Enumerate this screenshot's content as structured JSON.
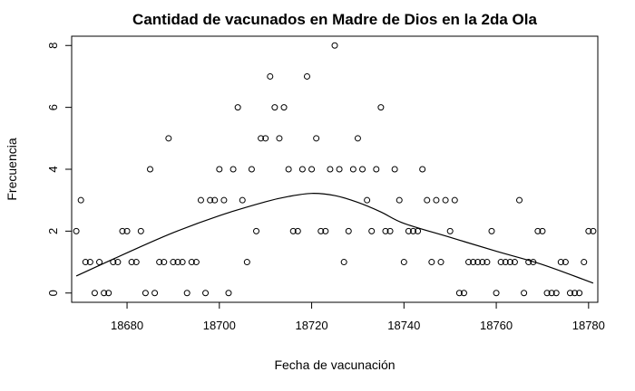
{
  "chart_data": {
    "type": "scatter",
    "title": "Cantidad de vacunados en Madre de Dios en la 2da Ola",
    "xlabel": "Fecha de vacunación",
    "ylabel": "Frecuencia",
    "xlim": [
      18668,
      18782
    ],
    "ylim": [
      -0.3,
      8.3
    ],
    "xticks": [
      18680,
      18700,
      18720,
      18740,
      18760,
      18780
    ],
    "yticks": [
      0,
      2,
      4,
      6,
      8
    ],
    "grid": false,
    "legend": "none",
    "x": [
      18669,
      18670,
      18671,
      18672,
      18673,
      18674,
      18675,
      18676,
      18677,
      18678,
      18679,
      18680,
      18681,
      18682,
      18683,
      18684,
      18685,
      18686,
      18687,
      18688,
      18689,
      18690,
      18691,
      18692,
      18693,
      18694,
      18695,
      18696,
      18697,
      18698,
      18699,
      18700,
      18701,
      18702,
      18703,
      18704,
      18705,
      18706,
      18707,
      18708,
      18709,
      18710,
      18711,
      18712,
      18713,
      18714,
      18715,
      18716,
      18717,
      18718,
      18719,
      18720,
      18721,
      18722,
      18723,
      18724,
      18725,
      18726,
      18727,
      18728,
      18729,
      18730,
      18731,
      18732,
      18733,
      18734,
      18735,
      18736,
      18737,
      18738,
      18739,
      18740,
      18741,
      18742,
      18743,
      18744,
      18745,
      18746,
      18747,
      18748,
      18749,
      18750,
      18751,
      18752,
      18753,
      18754,
      18755,
      18756,
      18757,
      18758,
      18759,
      18760,
      18761,
      18762,
      18763,
      18764,
      18765,
      18766,
      18767,
      18768,
      18769,
      18770,
      18771,
      18772,
      18773,
      18774,
      18775,
      18776,
      18777,
      18778,
      18779,
      18780,
      18781
    ],
    "y": [
      2,
      3,
      1,
      1,
      0,
      1,
      0,
      0,
      1,
      1,
      2,
      2,
      1,
      1,
      2,
      0,
      4,
      0,
      1,
      1,
      5,
      1,
      1,
      1,
      0,
      1,
      1,
      3,
      0,
      3,
      3,
      4,
      3,
      0,
      4,
      6,
      3,
      1,
      4,
      2,
      5,
      5,
      7,
      6,
      5,
      6,
      4,
      2,
      2,
      4,
      7,
      4,
      5,
      2,
      2,
      4,
      8,
      4,
      1,
      2,
      4,
      5,
      4,
      3,
      2,
      4,
      6,
      2,
      2,
      4,
      3,
      1,
      2,
      2,
      2,
      4,
      3,
      1,
      3,
      1,
      3,
      2,
      3,
      0,
      0,
      1,
      1,
      1,
      1,
      1,
      2,
      0,
      1,
      1,
      1,
      1,
      3,
      0,
      1,
      1,
      2,
      2,
      0,
      0,
      0,
      1,
      1,
      0,
      0,
      0,
      1,
      2,
      2
    ],
    "curve": {
      "x": [
        18669,
        18680,
        18690,
        18700,
        18710,
        18715,
        18720,
        18725,
        18730,
        18735,
        18740,
        18750,
        18760,
        18770,
        18781
      ],
      "y": [
        0.55,
        1.3,
        1.95,
        2.5,
        2.95,
        3.12,
        3.22,
        3.15,
        2.93,
        2.62,
        2.25,
        1.8,
        1.35,
        0.92,
        0.32
      ]
    }
  }
}
